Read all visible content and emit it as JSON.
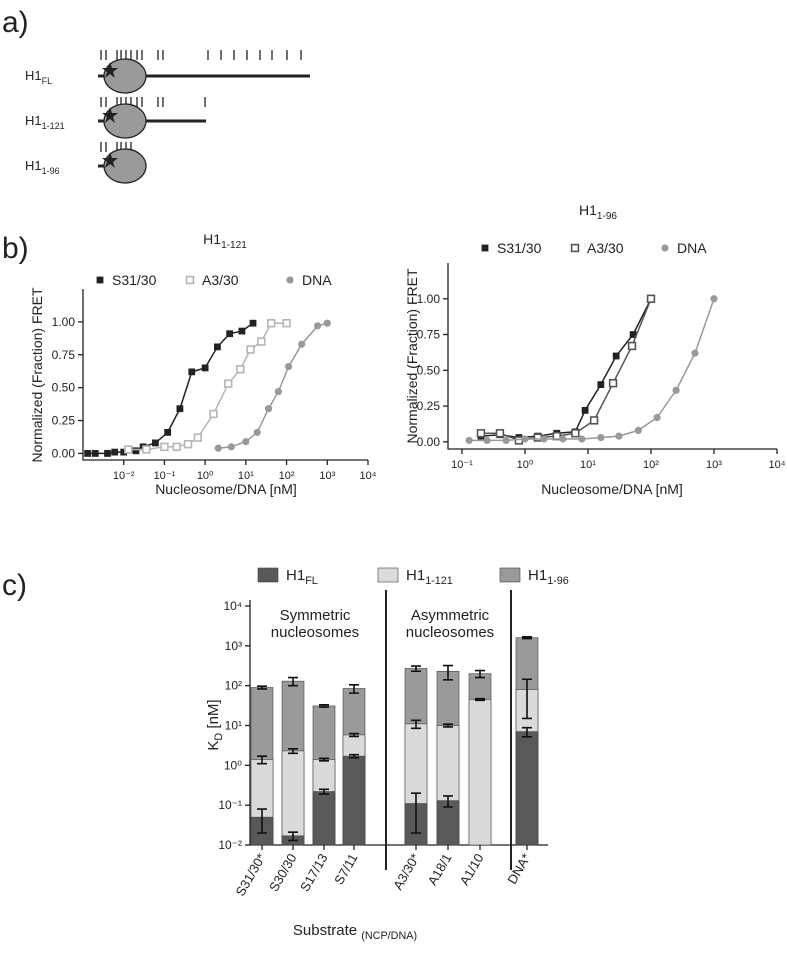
{
  "panel_labels": [
    "a)",
    "b)",
    "c)"
  ],
  "diagram": {
    "labels": [
      {
        "text": "H1",
        "sub": "FL"
      },
      {
        "text": "H1",
        "sub": "1-121"
      },
      {
        "text": "H1",
        "sub": "1-96"
      }
    ]
  },
  "chart_data": [
    {
      "type": "line",
      "title": {
        "text": "H1",
        "sub": "1-121"
      },
      "x_label": "Nucleosome/DNA [nM]",
      "y_label": "Normalized (Fraction) FRET",
      "xscale": "log",
      "xlim": [
        0.001,
        10000
      ],
      "xticks": [
        {
          "value": 0.01,
          "label": "10⁻²"
        },
        {
          "value": 0.1,
          "label": "10⁻¹"
        },
        {
          "value": 1,
          "label": "10⁰"
        },
        {
          "value": 10,
          "label": "10¹"
        },
        {
          "value": 100,
          "label": "10²"
        },
        {
          "value": 1000,
          "label": "10³"
        },
        {
          "value": 10000,
          "label": "10⁴"
        }
      ],
      "ylim": [
        -0.05,
        1.25
      ],
      "yticks": [
        {
          "value": 0,
          "label": "0.00"
        },
        0.25,
        {
          "value": 0.5,
          "label": "0.50"
        },
        0.75,
        {
          "value": 1,
          "label": "1.00"
        }
      ],
      "series": [
        {
          "name": "S31/30",
          "color": "#222222",
          "marker": "square",
          "x": [
            0.0013,
            0.002,
            0.004,
            0.006,
            0.01,
            0.02,
            0.03,
            0.06,
            0.12,
            0.24,
            0.47,
            1,
            2,
            4,
            8,
            15
          ],
          "values": [
            0,
            0,
            0,
            0.01,
            0.01,
            0.02,
            0.05,
            0.08,
            0.16,
            0.34,
            0.62,
            0.65,
            0.81,
            0.91,
            0.93,
            0.99
          ]
        },
        {
          "name": "A3/30",
          "color": "#b5b5b5",
          "marker": "open-square",
          "x": [
            0.013,
            0.036,
            0.1,
            0.2,
            0.38,
            0.66,
            1.6,
            3.7,
            7.3,
            13,
            24,
            42,
            100
          ],
          "values": [
            0.03,
            0.03,
            0.05,
            0.05,
            0.07,
            0.12,
            0.3,
            0.53,
            0.64,
            0.79,
            0.85,
            0.99,
            0.99
          ]
        },
        {
          "name": "DNA",
          "color": "#999999",
          "marker": "circle",
          "x": [
            2.1,
            4.4,
            10,
            19,
            36,
            63,
            112,
            235,
            580,
            1000
          ],
          "values": [
            0.04,
            0.05,
            0.09,
            0.16,
            0.34,
            0.47,
            0.66,
            0.83,
            0.97,
            0.99
          ]
        }
      ]
    },
    {
      "type": "line",
      "title": {
        "text": "H1",
        "sub": "1-96"
      },
      "x_label": "Nucleosome/DNA [nM]",
      "y_label": "Normalized (Fraction) FRET",
      "xscale": "log",
      "xlim": [
        0.06,
        10000
      ],
      "xticks": [
        {
          "value": 0.1,
          "label": "10⁻¹"
        },
        {
          "value": 1,
          "label": "10⁰"
        },
        {
          "value": 10,
          "label": "10¹"
        },
        {
          "value": 100,
          "label": "10²"
        },
        {
          "value": 1000,
          "label": "10³"
        },
        {
          "value": 10000,
          "label": "10⁴"
        }
      ],
      "ylim": [
        -0.05,
        1.25
      ],
      "yticks": [
        {
          "value": 0,
          "label": "0.00"
        },
        0.25,
        {
          "value": 0.5,
          "label": "0.50"
        },
        0.75,
        {
          "value": 1,
          "label": "1.00"
        }
      ],
      "series": [
        {
          "name": "S31/30",
          "color": "#222222",
          "marker": "square",
          "x": [
            0.2,
            0.4,
            0.8,
            1.6,
            3.2,
            6.3,
            9,
            16,
            28,
            52,
            100
          ],
          "values": [
            0.04,
            0.05,
            0.03,
            0.04,
            0.06,
            0.07,
            0.22,
            0.4,
            0.6,
            0.75,
            1
          ]
        },
        {
          "name": "A3/30",
          "color": "#555555",
          "marker": "open-square",
          "x": [
            0.2,
            0.4,
            0.8,
            1.6,
            3.2,
            6.3,
            12.5,
            25,
            50,
            100
          ],
          "values": [
            0.06,
            0.06,
            0.01,
            0.03,
            0.04,
            0.06,
            0.15,
            0.41,
            0.67,
            1
          ]
        },
        {
          "name": "DNA",
          "color": "#999999",
          "marker": "circle",
          "x": [
            0.13,
            0.25,
            0.5,
            1,
            2,
            4,
            8,
            16,
            31,
            63,
            125,
            250,
            500,
            1000
          ],
          "values": [
            0.01,
            0.01,
            0.01,
            0.02,
            0.02,
            0.02,
            0.02,
            0.03,
            0.04,
            0.08,
            0.17,
            0.36,
            0.62,
            1
          ]
        }
      ]
    },
    {
      "type": "bar",
      "yscale": "log",
      "y_label": {
        "text": "K",
        "sub": "D",
        "after": " [nM]"
      },
      "x_label": {
        "text": "Substrate ",
        "sub": "(NCP/DNA)"
      },
      "ylim": [
        0.01,
        10000
      ],
      "yticks": [
        {
          "value": 0.01,
          "label": "10⁻²"
        },
        {
          "value": 0.1,
          "label": "10⁻¹"
        },
        {
          "value": 1,
          "label": "10⁰"
        },
        {
          "value": 10,
          "label": "10¹"
        },
        {
          "value": 100,
          "label": "10²"
        },
        {
          "value": 1000,
          "label": "10³"
        },
        {
          "value": 10000,
          "label": "10⁴"
        }
      ],
      "categories": [
        "S31/30*",
        "S30/30",
        "S17/13",
        "S7/11",
        "A3/30*",
        "A18/1",
        "A1/10",
        "DNA*"
      ],
      "annotations": [
        [
          "Symmetric",
          "nucleosomes"
        ],
        [
          "Asymmetric",
          "nucleosomes"
        ]
      ],
      "series": [
        {
          "name": "H1",
          "name_sub": "FL",
          "color": "#595959",
          "values": [
            0.05,
            0.017,
            0.22,
            1.7,
            0.11,
            0.13,
            null,
            7
          ],
          "errors": [
            0.03,
            0.004,
            0.03,
            0.15,
            0.09,
            0.04,
            null,
            1.8
          ]
        },
        {
          "name": "H1",
          "name_sub": "1-121",
          "color": "#dadada",
          "values": [
            1.4,
            2.3,
            1.4,
            5.8,
            11,
            10,
            45,
            80
          ],
          "errors": [
            0.3,
            0.3,
            0.1,
            0.5,
            2.5,
            0.8,
            2,
            65
          ]
        },
        {
          "name": "H1",
          "name_sub": "1-96",
          "color": "#9a9a9a",
          "values": [
            90,
            130,
            31,
            85,
            270,
            230,
            200,
            1600
          ],
          "errors": [
            7,
            30,
            2,
            20,
            40,
            90,
            40,
            80
          ]
        }
      ]
    }
  ]
}
